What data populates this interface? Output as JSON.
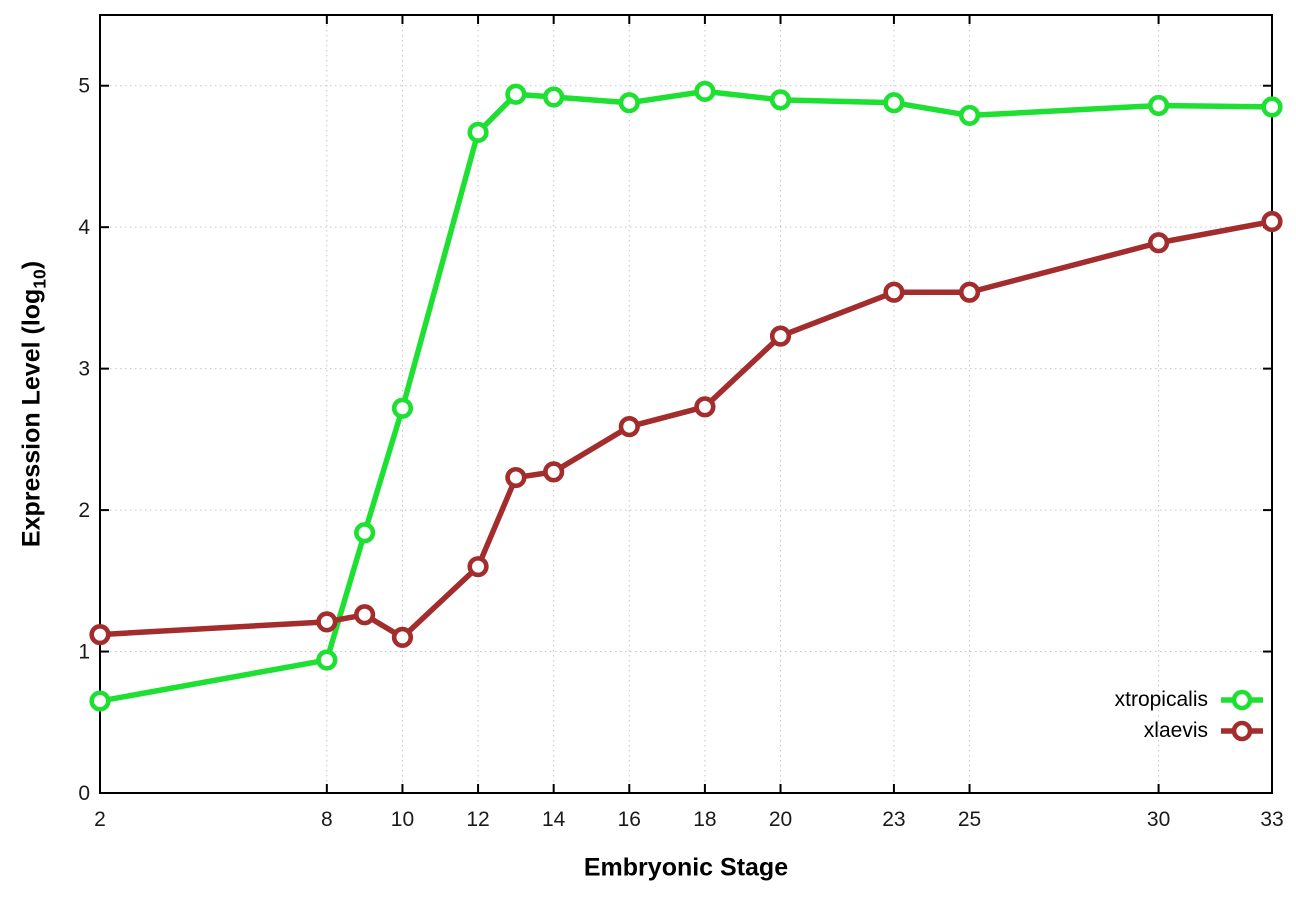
{
  "chart_data": {
    "type": "line",
    "title": "",
    "xlabel": "Embryonic Stage",
    "ylabel": "Expression Level (log10)",
    "ylabel_parts": {
      "pre": "Expression Level (log",
      "sub": "10",
      "post": ")"
    },
    "x": [
      2,
      8,
      9,
      10,
      12,
      13,
      14,
      16,
      18,
      20,
      23,
      25,
      30,
      33
    ],
    "series": [
      {
        "name": "xtropicalis",
        "color": "#1ee032",
        "values": [
          0.65,
          0.94,
          1.84,
          2.72,
          4.67,
          4.94,
          4.92,
          4.88,
          4.96,
          4.9,
          4.88,
          4.79,
          4.86,
          4.85
        ]
      },
      {
        "name": "xlaevis",
        "color": "#a32c2c",
        "values": [
          1.12,
          1.21,
          1.26,
          1.1,
          1.6,
          2.23,
          2.27,
          2.59,
          2.73,
          3.23,
          3.54,
          3.54,
          3.89,
          4.04
        ]
      }
    ],
    "x_ticks": [
      2,
      8,
      10,
      12,
      14,
      16,
      18,
      20,
      23,
      25,
      30,
      33
    ],
    "x_tick_labels": [
      "2",
      "8",
      "10",
      "12",
      "14",
      "16",
      "18",
      "20",
      "23",
      "25",
      "30",
      "33"
    ],
    "y_ticks": [
      0,
      1,
      2,
      3,
      4,
      5
    ],
    "y_tick_labels": [
      "0",
      "1",
      "2",
      "3",
      "4",
      "5"
    ],
    "xlim": [
      2,
      33
    ],
    "ylim": [
      0,
      5.5
    ],
    "grid": "dotted",
    "grid_color": "#c6c6c6",
    "axis_color": "#000000",
    "marker": "open-circle",
    "legend_position": "inside-right-bottom",
    "legend_entries": [
      "xtropicalis",
      "xlaevis"
    ]
  }
}
